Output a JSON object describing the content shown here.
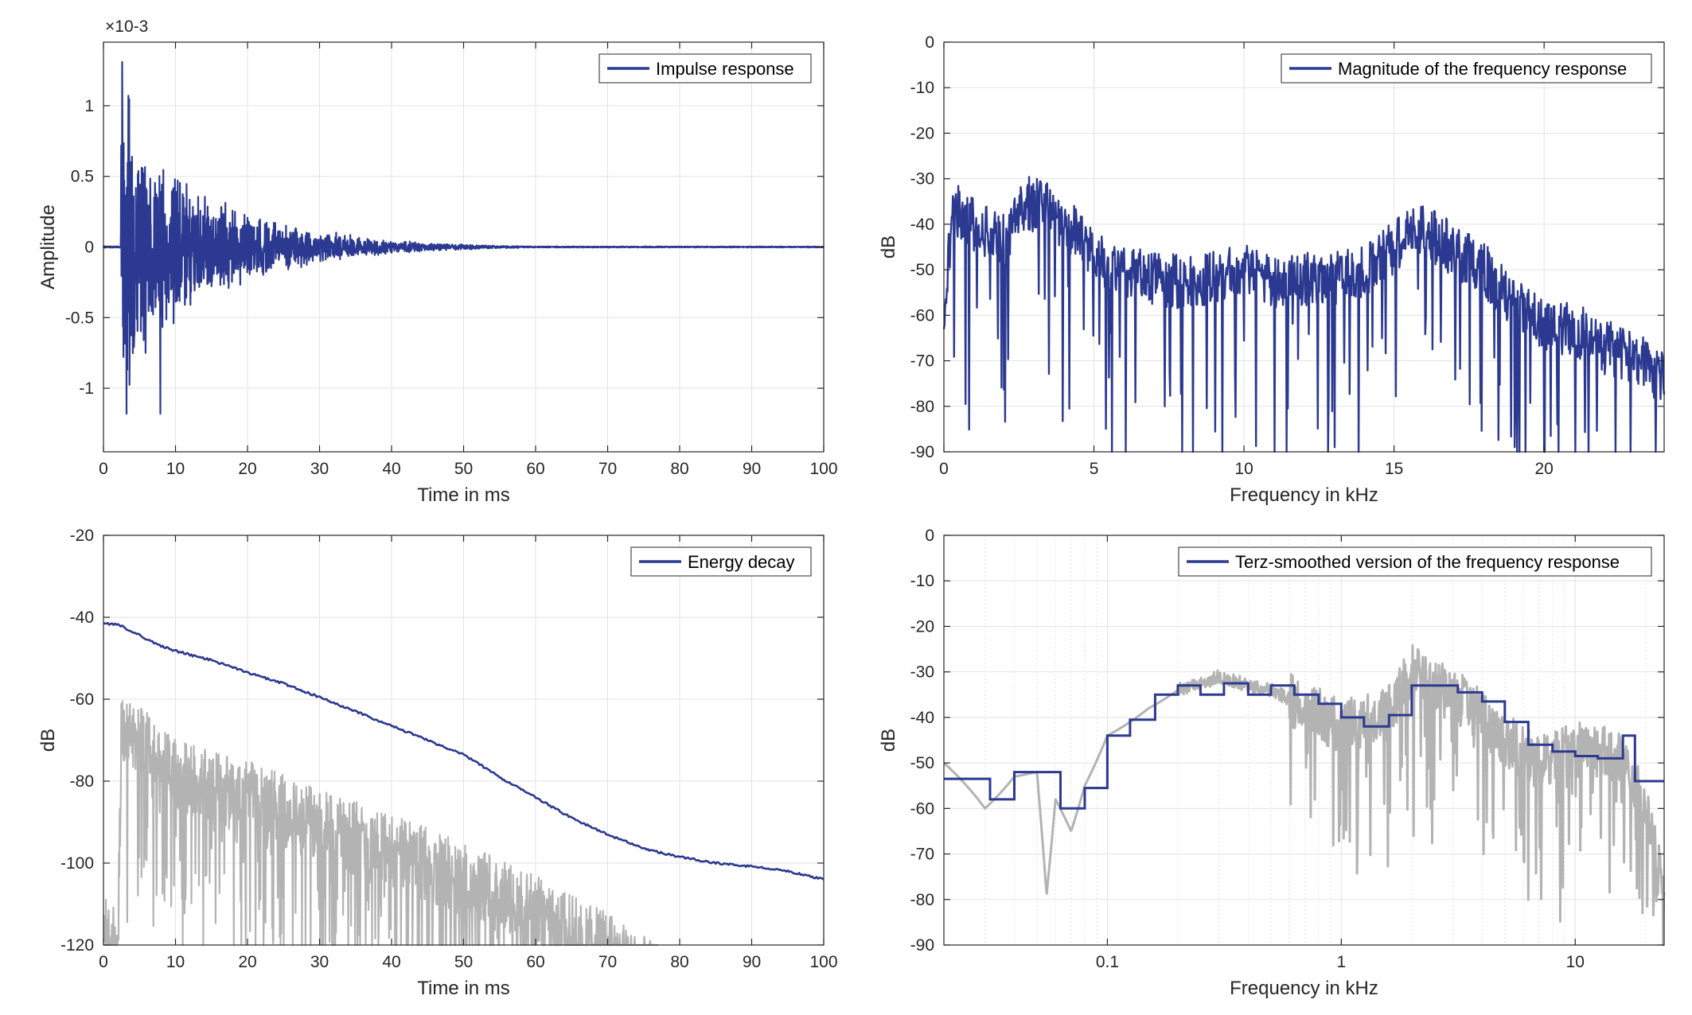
{
  "colors": {
    "series": "#2b3990",
    "background_series": "#b3b3b3",
    "grid": "#e3e3e3",
    "axis": "#262626"
  },
  "chart_data": [
    {
      "type": "line",
      "xlabel": "Time in ms",
      "ylabel": "Amplitude",
      "xlim": [
        0,
        100
      ],
      "ylim": [
        -1.45,
        1.45
      ],
      "xticks": [
        0,
        10,
        20,
        30,
        40,
        50,
        60,
        70,
        80,
        90,
        100
      ],
      "yticks": [
        -1,
        -0.5,
        0,
        0.5,
        1
      ],
      "y_exponent": "×10-3",
      "grid": true,
      "legend": "top-right",
      "series": [
        {
          "name": "Impulse response",
          "color": "#2b3990",
          "description_points": {
            "onset_ms": 2.4,
            "peak_ms": 2.6,
            "peak_value": 1.31,
            "min_value": -1.18,
            "min_at_ms": [
              3.2,
              7.9
            ],
            "envelope_ms": [
              2.6,
              5,
              10,
              15,
              20,
              25,
              30,
              35,
              40,
              45,
              50,
              55,
              60,
              100
            ],
            "envelope_amp": [
              1.31,
              0.8,
              0.55,
              0.36,
              0.26,
              0.19,
              0.13,
              0.08,
              0.05,
              0.03,
              0.02,
              0.01,
              0.005,
              0.004
            ]
          }
        }
      ]
    },
    {
      "type": "line",
      "xlabel": "Frequency in kHz",
      "ylabel": "dB",
      "xlim": [
        0,
        24
      ],
      "ylim": [
        -90,
        0
      ],
      "xticks": [
        0,
        5,
        10,
        15,
        20
      ],
      "yticks": [
        0,
        -10,
        -20,
        -30,
        -40,
        -50,
        -60,
        -70,
        -80,
        -90
      ],
      "grid": true,
      "legend": "top-right",
      "series": [
        {
          "name": "Magnitude of the frequency response",
          "color": "#2b3990",
          "x": [
            0,
            0.3,
            1,
            2,
            2.7,
            3.5,
            4.5,
            5.5,
            7,
            8.5,
            10,
            11,
            12.5,
            14,
            15,
            16,
            17,
            18,
            19,
            20,
            21,
            22,
            23,
            24
          ],
          "y": [
            -60,
            -36,
            -40,
            -44,
            -35,
            -37,
            -42,
            -50,
            -52,
            -53,
            -50,
            -53,
            -52,
            -51,
            -45,
            -41,
            -46,
            -50,
            -58,
            -62,
            -63,
            -67,
            -69,
            -74
          ]
        }
      ]
    },
    {
      "type": "line",
      "xlabel": "Time in ms",
      "ylabel": "dB",
      "xlim": [
        0,
        100
      ],
      "ylim": [
        -120,
        -20
      ],
      "xticks": [
        0,
        10,
        20,
        30,
        40,
        50,
        60,
        70,
        80,
        90,
        100
      ],
      "yticks": [
        -20,
        -40,
        -60,
        -80,
        -100,
        -120
      ],
      "grid": true,
      "legend": "top-right",
      "series": [
        {
          "name": "Energy decay",
          "color": "#2b3990",
          "x": [
            0,
            2,
            4,
            6,
            8,
            10,
            15,
            20,
            25,
            30,
            35,
            40,
            45,
            50,
            55,
            60,
            65,
            70,
            75,
            80,
            85,
            90,
            95,
            100
          ],
          "y": [
            -41.5,
            -41.7,
            -43.5,
            -45.3,
            -47,
            -48.2,
            -50.5,
            -53.5,
            -56.2,
            -59.5,
            -63,
            -66.5,
            -70,
            -73.5,
            -79,
            -84,
            -89,
            -93,
            -96.5,
            -98.5,
            -100,
            -100.8,
            -102,
            -104
          ]
        },
        {
          "color": "#b3b3b3",
          "x": [
            0,
            2,
            2.5,
            10,
            20,
            30,
            40,
            50,
            60,
            70,
            77
          ],
          "y": [
            -108,
            -112,
            -57,
            -70,
            -75,
            -82,
            -88,
            -95,
            -103,
            -112,
            -120
          ]
        }
      ]
    },
    {
      "type": "line",
      "xlabel": "Frequency in kHz",
      "ylabel": "dB",
      "xscale": "log",
      "xlim": [
        0.02,
        24
      ],
      "ylim": [
        -90,
        0
      ],
      "xticks": [
        0.1,
        1,
        10
      ],
      "xticklabels": [
        "0.1",
        "1",
        "10"
      ],
      "yticks": [
        0,
        -10,
        -20,
        -30,
        -40,
        -50,
        -60,
        -70,
        -80,
        -90
      ],
      "grid": true,
      "legend": "top-right",
      "series": [
        {
          "name": "Terz-smoothed version of the frequency response",
          "color": "#2b3990",
          "step_edges": [
            0.02,
            0.0315,
            0.04,
            0.05,
            0.063,
            0.08,
            0.1,
            0.125,
            0.16,
            0.2,
            0.25,
            0.315,
            0.4,
            0.5,
            0.63,
            0.8,
            1.0,
            1.25,
            1.6,
            2.0,
            2.5,
            3.15,
            4.0,
            5.0,
            6.3,
            8.0,
            10.0,
            12.5,
            16.0,
            18.0,
            24.0
          ],
          "step_values": [
            -53.5,
            -58,
            -52,
            -52,
            -60,
            -55.5,
            -44,
            -40.5,
            -35,
            -33,
            -35,
            -32.5,
            -35,
            -33,
            -35,
            -37,
            -40,
            -42,
            -39.5,
            -33,
            -33,
            -34.5,
            -36.5,
            -41,
            -46,
            -47.5,
            -48.5,
            -49,
            -44,
            -54
          ]
        },
        {
          "color": "#b3b3b3",
          "x": [
            0.02,
            0.03,
            0.04,
            0.05,
            0.055,
            0.06,
            0.07,
            0.08,
            0.1,
            0.15,
            0.2,
            0.3,
            0.4,
            0.5,
            0.7,
            1.0,
            1.5,
            2.0,
            2.5,
            3.0,
            4.0,
            5.0,
            7.0,
            10.0,
            15.0,
            20.0,
            24.0
          ],
          "y": [
            -50,
            -60,
            -53,
            -52,
            -79,
            -58,
            -65,
            -55,
            -44,
            -38,
            -34,
            -31,
            -33,
            -34,
            -38,
            -42,
            -40,
            -30,
            -33,
            -35,
            -40,
            -45,
            -50,
            -47,
            -48,
            -60,
            -80
          ]
        }
      ]
    }
  ]
}
